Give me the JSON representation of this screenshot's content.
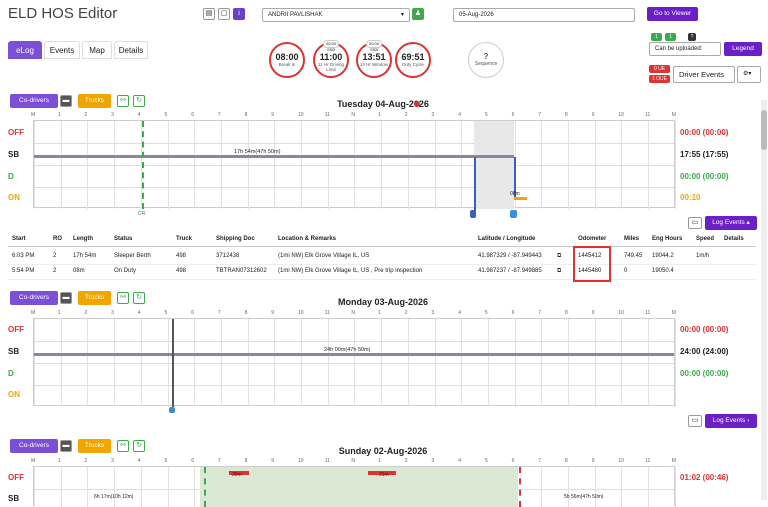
{
  "app": {
    "title": "ELD HOS Editor"
  },
  "header": {
    "driver": "ANDRII PAVLISHAK",
    "date": "05-Aug-2026",
    "viewer_btn": "Go to Viewer"
  },
  "tabs": [
    "eLog",
    "Events",
    "Map",
    "Details"
  ],
  "gauges": [
    {
      "value": "08:00",
      "label": "Break In",
      "sub": ""
    },
    {
      "value": "11:00",
      "label": "11 Hr Driving Limit",
      "sub": "00:00 SSB"
    },
    {
      "value": "13:51",
      "label": "14 Hr Window",
      "sub": "00:00 SSB"
    },
    {
      "value": "69:51",
      "label": "Duty Cycle",
      "sub": ""
    }
  ],
  "sequence": {
    "icon": "?",
    "label": "Sequence"
  },
  "right": {
    "upload": "Can be uploaded:",
    "legend": "Legend",
    "ue": "0 UE",
    "oue": "1 OUE",
    "driver_events": "Driver Events",
    "badges": [
      "1",
      "1",
      "?"
    ]
  },
  "toolbar": {
    "codrivers": "Co-drivers",
    "trucks": "Trucks"
  },
  "days": [
    {
      "title": "Tuesday 04-Aug-2026",
      "totals": [
        "00:00 (00:00)",
        "17:55 (17:55)",
        "00:00 (00:00)",
        "00:10"
      ],
      "sb_note": "17h 54m(47h 50m)",
      "on_note": "08m",
      "cr": "CR",
      "badge": "0 UE"
    },
    {
      "title": "Monday 03-Aug-2026",
      "totals": [
        "00:00 (00:00)",
        "24:00 (24:00)",
        "00:00 (00:00)",
        ""
      ],
      "sb_note": "24h 00m(47h 50m)"
    },
    {
      "title": "Sunday 02-Aug-2026",
      "totals": [
        "01:02 (00:46)"
      ],
      "notes": [
        "30m",
        "31m",
        "6h 17m(10h 12m)",
        "5h 56m(47h 50m)"
      ]
    }
  ],
  "rows": [
    "OFF",
    "SB",
    "D",
    "ON"
  ],
  "hours": [
    "M",
    "1",
    "2",
    "3",
    "4",
    "5",
    "6",
    "7",
    "8",
    "9",
    "10",
    "11",
    "N",
    "1",
    "2",
    "3",
    "4",
    "5",
    "6",
    "7",
    "8",
    "9",
    "10",
    "11",
    "M"
  ],
  "log_events": "Log Events",
  "table": {
    "headers": [
      "Start",
      "RO",
      "Length",
      "Status",
      "Truck",
      "Shipping Doc",
      "Location & Remarks",
      "Latitude / Longitude",
      "Odometer",
      "Miles",
      "Eng Hours",
      "Speed",
      "Details"
    ],
    "rows": [
      [
        "6:03 PM",
        "2",
        "17h 54m",
        "Sleeper Berth",
        "498",
        "3712438",
        "(1mi NW) Elk Grove Village IL, US",
        "41.987329 / -87.949443",
        "1445412",
        "749.45",
        "19044.2",
        "1m/h",
        ""
      ],
      [
        "5:54 PM",
        "2",
        "08m",
        "On Duty",
        "498",
        "TBTRAN07312602",
        "(1mi NW) Elk Grove Village IL, US , Pre trip inspection",
        "41.987237 / -87.949885",
        "1445480",
        "0",
        "19050.4",
        "",
        ""
      ]
    ]
  }
}
